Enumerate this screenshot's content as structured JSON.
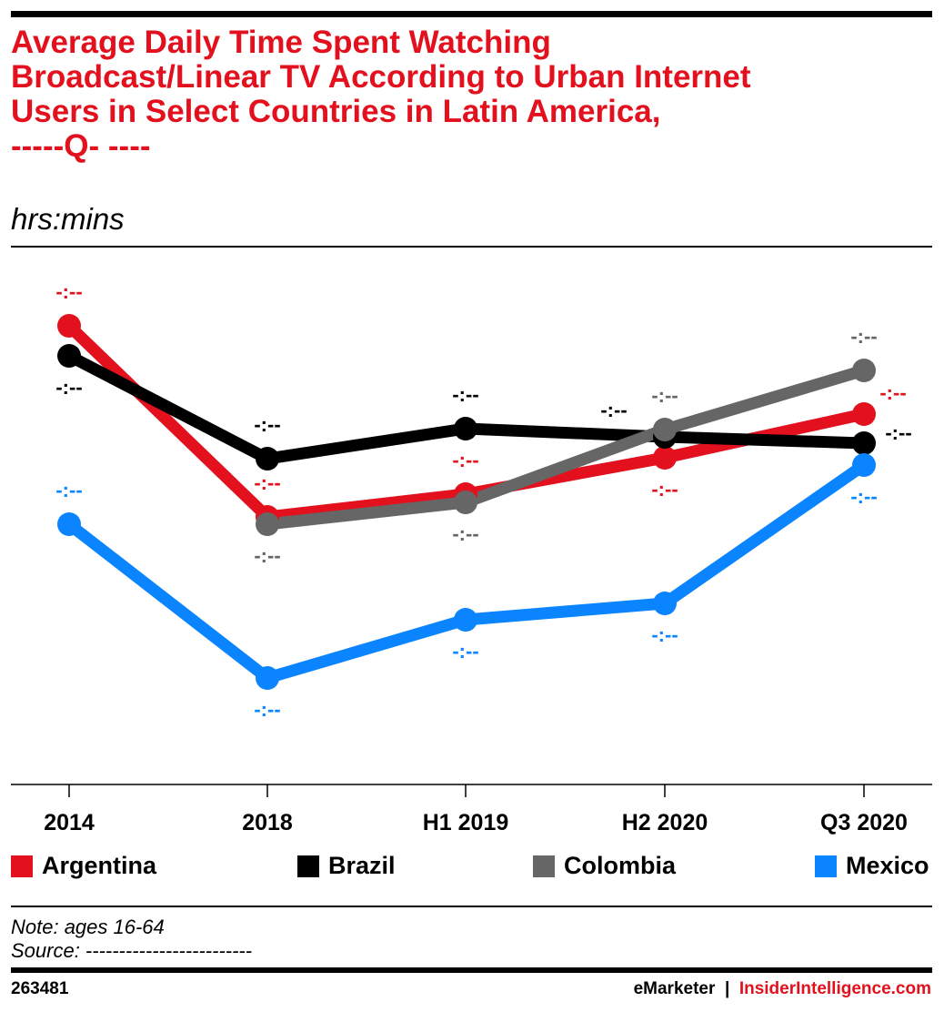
{
  "title_lines": [
    "Average Daily Time Spent Watching",
    "Broadcast/Linear TV According to Urban Internet",
    "Users in Select Countries in Latin America,",
    "-----Q- ----"
  ],
  "subtitle": "hrs:mins",
  "note": "Note: ages 16-64",
  "source": "Source: -------------------------",
  "footer": {
    "id": "263481",
    "brand1": "eMarketer",
    "sep": "|",
    "brand2": "InsiderIntelligence.com"
  },
  "colors": {
    "Argentina": "#e3101e",
    "Brazil": "#000000",
    "Colombia": "#666666",
    "Mexico": "#0a84ff"
  },
  "chart_data": {
    "type": "line",
    "title": "Average Daily Time Spent Watching Broadcast/Linear TV According to Urban Internet Users in Select Countries in Latin America, -----Q- ----",
    "ylabel": "hrs:mins",
    "xlabel": "",
    "categories": [
      "2014",
      "2018",
      "H1 2019",
      "H2 2020",
      "Q3 2020"
    ],
    "ylim": [
      0,
      5.6
    ],
    "grid": false,
    "legend": "bottom",
    "series": [
      {
        "name": "Argentina",
        "values": [
          5.04,
          2.94,
          3.19,
          3.59,
          4.07
        ],
        "labels": [
          "-:--",
          "-:--",
          "-:--",
          "-:--",
          "-:--"
        ],
        "label_pos": [
          "above",
          "above",
          "above",
          "below",
          "right-up"
        ]
      },
      {
        "name": "Brazil",
        "values": [
          4.71,
          3.58,
          3.91,
          3.82,
          3.75
        ],
        "labels": [
          "-:--",
          "-:--",
          "-:--",
          "-:--",
          "-:--"
        ],
        "label_pos": [
          "below",
          "above",
          "above",
          "above-left",
          "right"
        ]
      },
      {
        "name": "Colombia",
        "values": [
          null,
          2.86,
          3.1,
          3.9,
          4.55
        ],
        "labels": [
          null,
          "-:--",
          "-:--",
          "-:--",
          "-:--"
        ],
        "label_pos": [
          null,
          "below",
          "below",
          "above",
          "above"
        ]
      },
      {
        "name": "Mexico",
        "values": [
          2.86,
          1.17,
          1.81,
          1.99,
          3.51
        ],
        "labels": [
          "-:--",
          "-:--",
          "-:--",
          "-:--",
          "-:--"
        ],
        "label_pos": [
          "above",
          "below",
          "below",
          "below",
          "below"
        ]
      }
    ]
  }
}
